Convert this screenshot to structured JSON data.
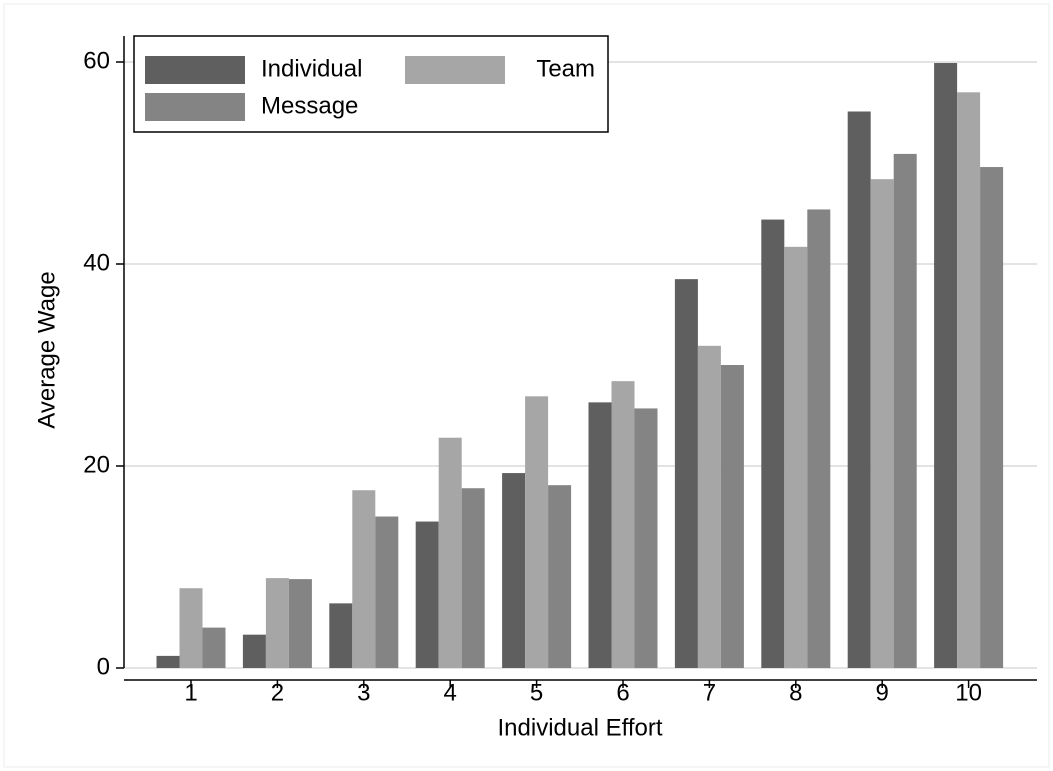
{
  "chart_data": {
    "type": "bar",
    "x_label": "Individual Effort",
    "y_label": "Average Wage",
    "categories": [
      "1",
      "2",
      "3",
      "4",
      "5",
      "6",
      "7",
      "8",
      "9",
      "10"
    ],
    "series": [
      {
        "name": "Individual",
        "color": "#5f5f5f",
        "values": [
          1.2,
          3.3,
          6.4,
          14.5,
          19.3,
          26.3,
          38.5,
          44.4,
          55.1,
          59.9
        ]
      },
      {
        "name": "Team",
        "color": "#a6a6a6",
        "values": [
          7.9,
          8.9,
          17.6,
          22.8,
          26.9,
          28.4,
          31.9,
          41.7,
          48.4,
          57.0
        ]
      },
      {
        "name": "Message",
        "color": "#848484",
        "values": [
          4.0,
          8.8,
          15.0,
          17.8,
          18.1,
          25.7,
          30.0,
          45.4,
          50.9,
          49.6
        ]
      }
    ],
    "ylim": [
      0,
      60
    ],
    "yticks": [
      0,
      20,
      40,
      60
    ],
    "grid": true
  }
}
